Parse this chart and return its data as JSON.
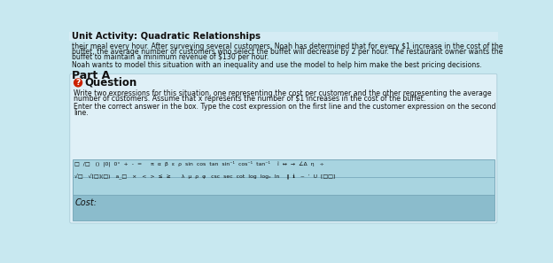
{
  "title": "Unit Activity: Quadratic Relationships",
  "bg_color": "#c8e8f0",
  "body_text_1a": "their meal every hour. After surveying several customers, Noah has determined that for every $1 increase in the cost of the",
  "body_text_1b": "buffet, the average number of customers who select the buffet will decrease by 2 per hour. The restaurant owner wants the",
  "body_text_1c": "buffet to maintain a minimum revenue of $130 per hour.",
  "body_text_2": "Noah wants to model this situation with an inequality and use the model to help him make the best pricing decisions.",
  "part_a_label": "Part A",
  "question_text": "Question",
  "question_body_1": "Write two expressions for this situation, one representing the cost per customer and the other representing the average",
  "question_body_2": "number of customers. Assume that x represents the number of $1 increases in the cost of the buffet.",
  "instruction_1": "Enter the correct answer in the box. Type the cost expression on the first line and the customer expression on the second",
  "instruction_2": "line.",
  "toolbar_row1": "□  /□   ()  |0|  0°  +  -  =     π  α  β  ε  ρ  sin  cos  tan  sin⁻¹  cos⁻¹  tan⁻¹    î  ↔  →  ∠Δ  η   ÷",
  "toolbar_row2": "√□   √[□](□)   a_□   ×   <  >  ≤  ≥      λ  μ  ρ  φ   csc  sec  cot  log  logₓ  ln    ‖  ℹ   ~  ʹ  U  [□□]",
  "cost_label": "Cost:",
  "toolbar_bg": "#a8d4e0",
  "cost_bg": "#8bbccc",
  "title_color": "#111111",
  "text_color": "#111111"
}
